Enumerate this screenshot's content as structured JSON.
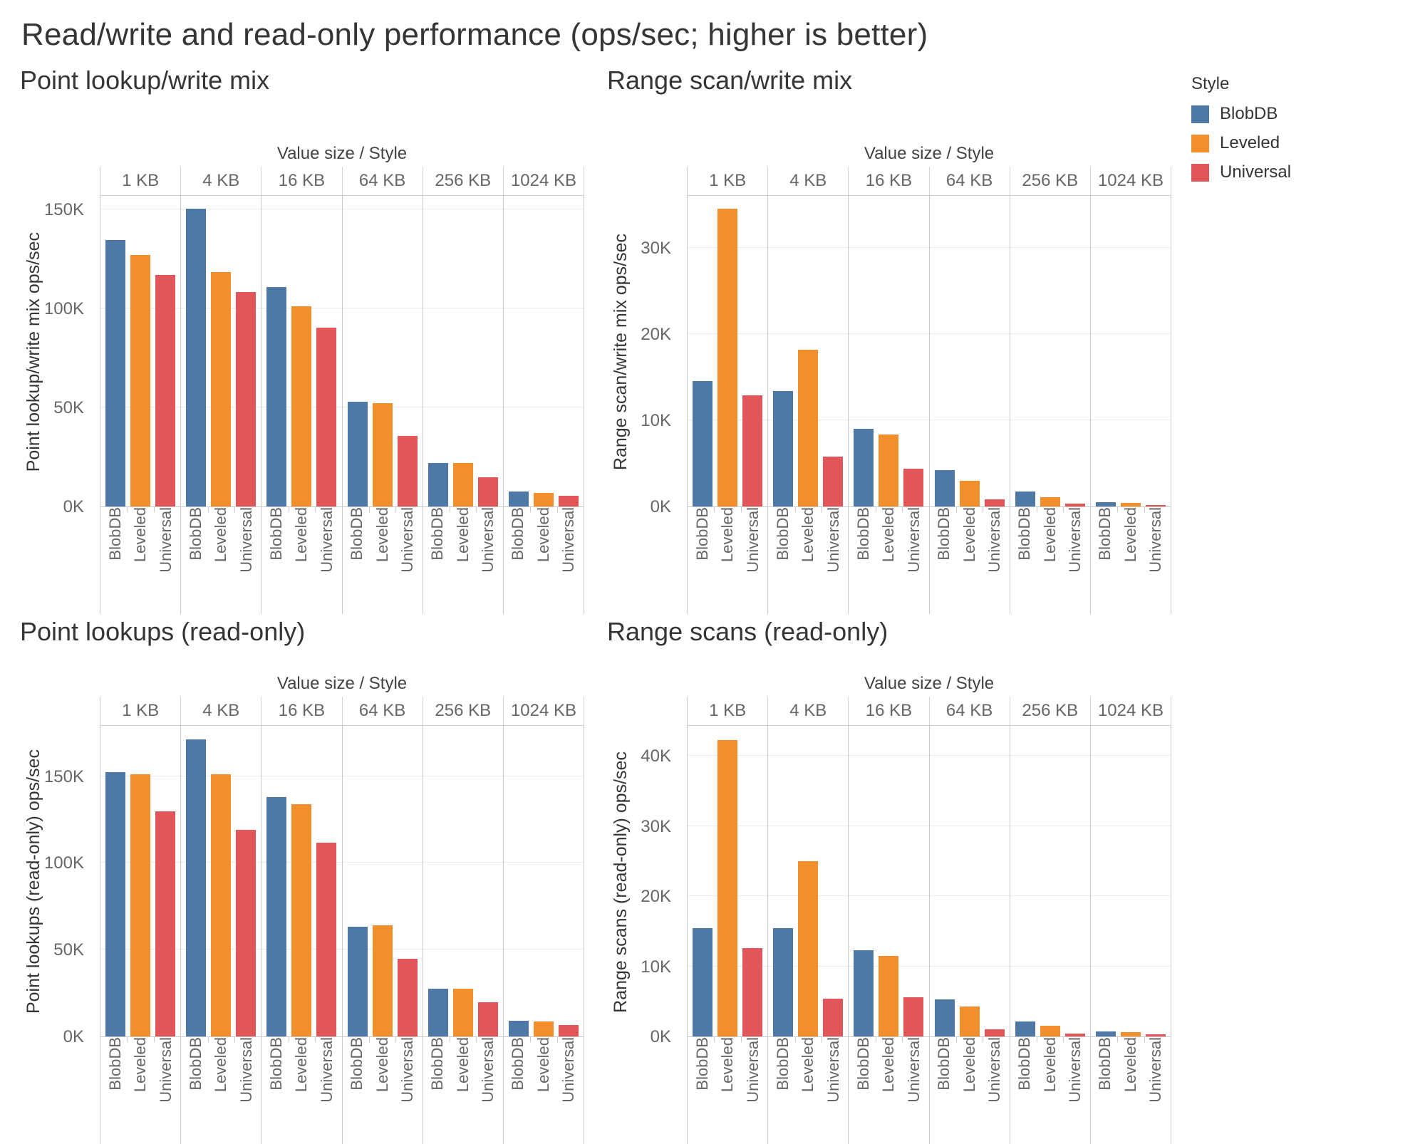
{
  "page": {
    "title": "Read/write and read-only performance (ops/sec; higher is better)"
  },
  "legend": {
    "title": "Style",
    "items": [
      {
        "label": "BlobDB",
        "color": "#4e79a7"
      },
      {
        "label": "Leveled",
        "color": "#f28e2b"
      },
      {
        "label": "Universal",
        "color": "#e15759"
      }
    ]
  },
  "colors": {
    "blobdb": "#4e79a7",
    "leveled": "#f28e2b",
    "universal": "#e15759",
    "gridline": "#ececec",
    "pane_divider": "#c9c9c9",
    "tick_text": "#666666",
    "title_text": "#353535"
  },
  "chart_data": [
    {
      "type": "bar",
      "title": "Point lookup/write mix",
      "ylabel": "Point lookup/write mix ops/sec",
      "column_header": "Value size / Style",
      "categories": [
        "1 KB",
        "4 KB",
        "16 KB",
        "64 KB",
        "256 KB",
        "1024 KB"
      ],
      "series": [
        {
          "name": "BlobDB",
          "color": "#4e79a7",
          "values": [
            134500,
            150400,
            111000,
            53000,
            22000,
            7500
          ]
        },
        {
          "name": "Leveled",
          "color": "#f28e2b",
          "values": [
            127000,
            118500,
            101300,
            52300,
            22000,
            6800
          ]
        },
        {
          "name": "Universal",
          "color": "#e15759",
          "values": [
            117000,
            108500,
            90500,
            35500,
            14800,
            5400
          ]
        }
      ],
      "ylim": [
        0,
        157000
      ],
      "yticks": [
        {
          "value": 0,
          "label": "0K"
        },
        {
          "value": 50000,
          "label": "50K"
        },
        {
          "value": 100000,
          "label": "100K"
        },
        {
          "value": 150000,
          "label": "150K"
        }
      ],
      "grid": true,
      "legend_position": "none"
    },
    {
      "type": "bar",
      "title": "Range scan/write mix",
      "ylabel": "Range scan/write mix ops/sec",
      "column_header": "Value size / Style",
      "categories": [
        "1 KB",
        "4 KB",
        "16 KB",
        "64 KB",
        "256 KB",
        "1024 KB"
      ],
      "series": [
        {
          "name": "BlobDB",
          "color": "#4e79a7",
          "values": [
            14500,
            13400,
            9000,
            4200,
            1700,
            500
          ]
        },
        {
          "name": "Leveled",
          "color": "#f28e2b",
          "values": [
            34500,
            18200,
            8300,
            3000,
            1100,
            400
          ]
        },
        {
          "name": "Universal",
          "color": "#e15759",
          "values": [
            12900,
            5800,
            4400,
            800,
            300,
            150
          ]
        }
      ],
      "ylim": [
        0,
        36000
      ],
      "yticks": [
        {
          "value": 0,
          "label": "0K"
        },
        {
          "value": 10000,
          "label": "10K"
        },
        {
          "value": 20000,
          "label": "20K"
        },
        {
          "value": 30000,
          "label": "30K"
        }
      ],
      "grid": true,
      "legend_position": "right"
    },
    {
      "type": "bar",
      "title": "Point lookups (read-only)",
      "ylabel": "Point lookups (read-only) ops/sec",
      "column_header": "Value size / Style",
      "categories": [
        "1 KB",
        "4 KB",
        "16 KB",
        "64 KB",
        "256 KB",
        "1024 KB"
      ],
      "series": [
        {
          "name": "BlobDB",
          "color": "#4e79a7",
          "values": [
            152500,
            171400,
            137800,
            63400,
            27400,
            9000
          ]
        },
        {
          "name": "Leveled",
          "color": "#f28e2b",
          "values": [
            151000,
            151000,
            133800,
            64200,
            27400,
            8800
          ]
        },
        {
          "name": "Universal",
          "color": "#e15759",
          "values": [
            129700,
            119000,
            111700,
            44600,
            19600,
            6500
          ]
        }
      ],
      "ylim": [
        0,
        179000
      ],
      "yticks": [
        {
          "value": 0,
          "label": "0K"
        },
        {
          "value": 50000,
          "label": "50K"
        },
        {
          "value": 100000,
          "label": "100K"
        },
        {
          "value": 150000,
          "label": "150K"
        }
      ],
      "grid": true,
      "legend_position": "none"
    },
    {
      "type": "bar",
      "title": "Range scans (read-only)",
      "ylabel": "Range scans (read-only) ops/sec",
      "column_header": "Value size / Style",
      "categories": [
        "1 KB",
        "4 KB",
        "16 KB",
        "64 KB",
        "256 KB",
        "1024 KB"
      ],
      "series": [
        {
          "name": "BlobDB",
          "color": "#4e79a7",
          "values": [
            15400,
            15400,
            12300,
            5300,
            2100,
            700
          ]
        },
        {
          "name": "Leveled",
          "color": "#f28e2b",
          "values": [
            42300,
            25000,
            11500,
            4300,
            1500,
            600
          ]
        },
        {
          "name": "Universal",
          "color": "#e15759",
          "values": [
            12600,
            5400,
            5600,
            1000,
            400,
            350
          ]
        }
      ],
      "ylim": [
        0,
        44300
      ],
      "yticks": [
        {
          "value": 0,
          "label": "0K"
        },
        {
          "value": 10000,
          "label": "10K"
        },
        {
          "value": 20000,
          "label": "20K"
        },
        {
          "value": 30000,
          "label": "30K"
        },
        {
          "value": 40000,
          "label": "40K"
        }
      ],
      "grid": true,
      "legend_position": "none"
    }
  ]
}
